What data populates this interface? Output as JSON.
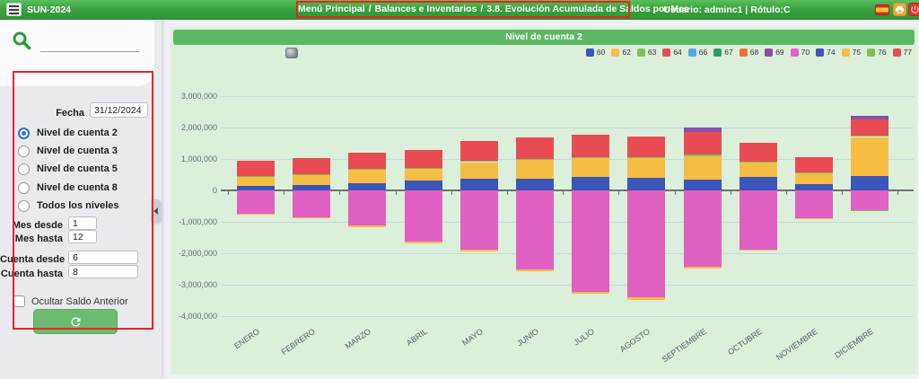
{
  "topbar": {
    "app_title": "SUN-2024",
    "breadcrumb": {
      "items": [
        "Menú Principal",
        "Balances e Inventarios",
        "3.8. Evolución Acumulada de Saldos por Mes"
      ],
      "separator": "/"
    },
    "user_info": "Usuario: adminc1 | Rótulo:C"
  },
  "sidebar": {
    "search_value": "",
    "fecha": {
      "label": "Fecha",
      "value": "31/12/2024"
    },
    "levels": [
      {
        "label": "Nivel de cuenta 2",
        "selected": true
      },
      {
        "label": "Nivel de cuenta 3",
        "selected": false
      },
      {
        "label": "Nivel de cuenta 5",
        "selected": false
      },
      {
        "label": "Nivel de cuenta 8",
        "selected": false
      },
      {
        "label": "Todos los niveles",
        "selected": false
      }
    ],
    "mes_desde": {
      "label": "Mes desde",
      "value": "1"
    },
    "mes_hasta": {
      "label": "Mes hasta",
      "value": "12"
    },
    "cuenta_desde": {
      "label": "Cuenta desde",
      "value": "6"
    },
    "cuenta_hasta": {
      "label": "Cuenta hasta",
      "value": "8"
    },
    "ocultar": {
      "label": "Ocultar Saldo Anterior",
      "checked": false
    }
  },
  "colors": {
    "topbar_green": "#3ba340",
    "panel_bg": "#dcefdb",
    "header_green": "#5cb962",
    "annotation_red": "#ee2222",
    "button_green": "#6cbb70",
    "radio_blue": "#2f6be6"
  },
  "chart_data": {
    "type": "bar",
    "stacked": true,
    "title": "Nivel de cuenta 2",
    "legend_position": "top-right",
    "grid": true,
    "categories": [
      "ENERO",
      "FEBRERO",
      "MARZO",
      "ABRIL",
      "MAYO",
      "JUNIO",
      "JULIO",
      "AGOSTO",
      "SEPTIEMBRE",
      "OCTUBRE",
      "NOVIEMBRE",
      "DICIEMBRE"
    ],
    "ylim": [
      -4000000,
      3000000
    ],
    "ytick_values": [
      3000000,
      2000000,
      1000000,
      0,
      -1000000,
      -2000000,
      -3000000,
      -4000000
    ],
    "ytick_labels": [
      "3,000,000",
      "2,000,000",
      "1,000,000",
      "0",
      "-1,000,000",
      "-2,000,000",
      "-3,000,000",
      "-4,000,000"
    ],
    "series": [
      {
        "name": "60",
        "color": "#3c55b8",
        "values": [
          140000,
          175000,
          220000,
          320000,
          380000,
          360000,
          430000,
          410000,
          340000,
          440000,
          210000,
          450000
        ]
      },
      {
        "name": "62",
        "color": "#f5bd44",
        "values": [
          280000,
          310000,
          430000,
          380000,
          520000,
          630000,
          600000,
          620000,
          750000,
          450000,
          330000,
          1250000
        ]
      },
      {
        "name": "63",
        "color": "#7cc05a",
        "values": [
          30000,
          30000,
          30000,
          20000,
          30000,
          20000,
          30000,
          30000,
          50000,
          20000,
          20000,
          30000
        ]
      },
      {
        "name": "64",
        "color": "#e84c52",
        "values": [
          500000,
          515000,
          520000,
          570000,
          630000,
          690000,
          700000,
          660000,
          720000,
          610000,
          500000,
          520000
        ]
      },
      {
        "name": "66",
        "color": "#55a9dc",
        "values": [
          0,
          0,
          0,
          0,
          0,
          0,
          0,
          0,
          0,
          0,
          0,
          0
        ]
      },
      {
        "name": "67",
        "color": "#2a9d68",
        "values": [
          0,
          0,
          0,
          0,
          0,
          0,
          0,
          0,
          0,
          0,
          0,
          0
        ]
      },
      {
        "name": "68",
        "color": "#f2703c",
        "values": [
          0,
          0,
          0,
          0,
          0,
          0,
          0,
          0,
          0,
          0,
          0,
          0
        ]
      },
      {
        "name": "69",
        "color": "#8a4fa8",
        "values": [
          0,
          0,
          0,
          0,
          0,
          0,
          0,
          0,
          140000,
          0,
          0,
          120000
        ]
      },
      {
        "name": "70",
        "color": "#e160c3",
        "values": [
          -730000,
          -850000,
          -1120000,
          -1630000,
          -1880000,
          -2520000,
          -3220000,
          -3400000,
          -2440000,
          -1880000,
          -880000,
          -620000
        ]
      },
      {
        "name": "74",
        "color": "#3c55b8",
        "values": [
          0,
          0,
          0,
          0,
          0,
          0,
          0,
          0,
          0,
          0,
          0,
          0
        ]
      },
      {
        "name": "75",
        "color": "#f5bd44",
        "values": [
          -20000,
          -30000,
          -40000,
          -50000,
          -50000,
          -60000,
          -80000,
          -80000,
          -40000,
          -40000,
          -20000,
          0
        ]
      },
      {
        "name": "76",
        "color": "#7cc05a",
        "values": [
          0,
          0,
          0,
          0,
          0,
          0,
          0,
          0,
          0,
          0,
          0,
          -50000
        ]
      },
      {
        "name": "77",
        "color": "#e84c52",
        "values": [
          0,
          0,
          0,
          0,
          0,
          0,
          0,
          0,
          0,
          0,
          0,
          0
        ]
      }
    ]
  }
}
